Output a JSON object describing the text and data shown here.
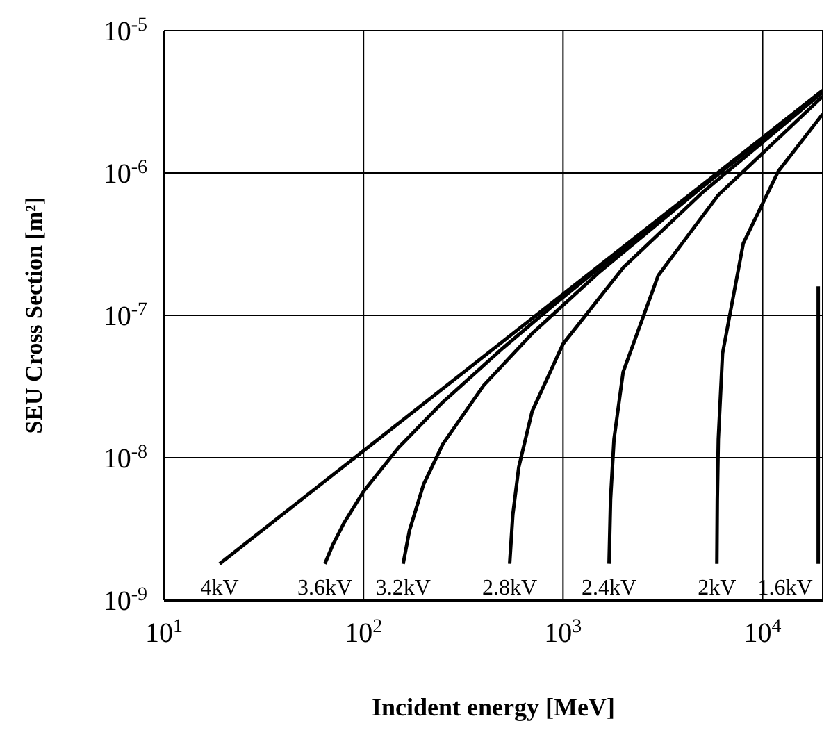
{
  "chart_data": {
    "type": "line",
    "xlabel": "Incident energy [MeV]",
    "ylabel": "SEU Cross Section [m²]",
    "log": "xy",
    "grid": true,
    "marker": "none",
    "line_style": "solid",
    "xlim": [
      10,
      20000
    ],
    "ylim": [
      1e-09,
      1e-05
    ],
    "xticks": [
      {
        "value": 10,
        "label": "10$^{1}$"
      },
      {
        "value": 100,
        "label": "10$^{2}$"
      },
      {
        "value": 1000,
        "label": "10$^{3}$"
      },
      {
        "value": 10000,
        "label": "10$^{4}$"
      }
    ],
    "yticks": [
      {
        "value": 1e-09,
        "label": "10$^{-9}$"
      },
      {
        "value": 1e-08,
        "label": "10$^{-8}$"
      },
      {
        "value": 1e-07,
        "label": "10$^{-7}$"
      },
      {
        "value": 1e-06,
        "label": "10$^{-6}$"
      },
      {
        "value": 1e-05,
        "label": "10$^{-5}$"
      }
    ],
    "series": [
      {
        "name": "4kV",
        "color": "#000000",
        "x": [
          19,
          20000
        ],
        "values": [
          1.8e-09,
          3.8e-06
        ]
      },
      {
        "name": "3.6kV",
        "color": "#000000",
        "x": [
          64,
          70,
          80,
          100,
          150,
          250,
          500,
          1000,
          3000,
          20000
        ],
        "values": [
          1.8e-09,
          2.43e-09,
          3.5e-09,
          5.8e-09,
          1.18e-08,
          2.46e-08,
          5.9e-08,
          1.34e-07,
          4.64e-07,
          3.79e-06
        ]
      },
      {
        "name": "3.2kV",
        "color": "#000000",
        "x": [
          158,
          170,
          200,
          250,
          400,
          700,
          1500,
          5000,
          20000
        ],
        "values": [
          1.8e-09,
          3.09e-09,
          6.5e-09,
          1.25e-08,
          3.22e-08,
          7.45e-08,
          1.98e-07,
          8e-07,
          3.77e-06
        ]
      },
      {
        "name": "2.8kV",
        "color": "#000000",
        "x": [
          540,
          560,
          600,
          700,
          1000,
          2000,
          5000,
          20000
        ],
        "values": [
          1.8e-09,
          3.97e-09,
          8.6e-09,
          2.12e-08,
          6.3e-08,
          2.16e-07,
          7.3e-07,
          3.69e-06
        ]
      },
      {
        "name": "2.4kV",
        "color": "#000000",
        "x": [
          1700,
          1730,
          1800,
          2000,
          3000,
          6000,
          20000
        ],
        "values": [
          1.8e-09,
          5.1e-09,
          1.35e-08,
          4e-08,
          1.91e-07,
          7e-07,
          3.45e-06
        ]
      },
      {
        "name": "2kV",
        "color": "#000000",
        "x": [
          5900,
          5930,
          6000,
          6300,
          8000,
          12000,
          20000
        ],
        "values": [
          1.8e-09,
          5.1e-09,
          1.35e-08,
          5.4e-08,
          3.2e-07,
          1.03e-06,
          2.59e-06
        ]
      },
      {
        "name": "1.6kV",
        "color": "#000000",
        "x": [
          19000,
          19000
        ],
        "values": [
          1.8e-09,
          1.6e-07
        ]
      }
    ]
  }
}
